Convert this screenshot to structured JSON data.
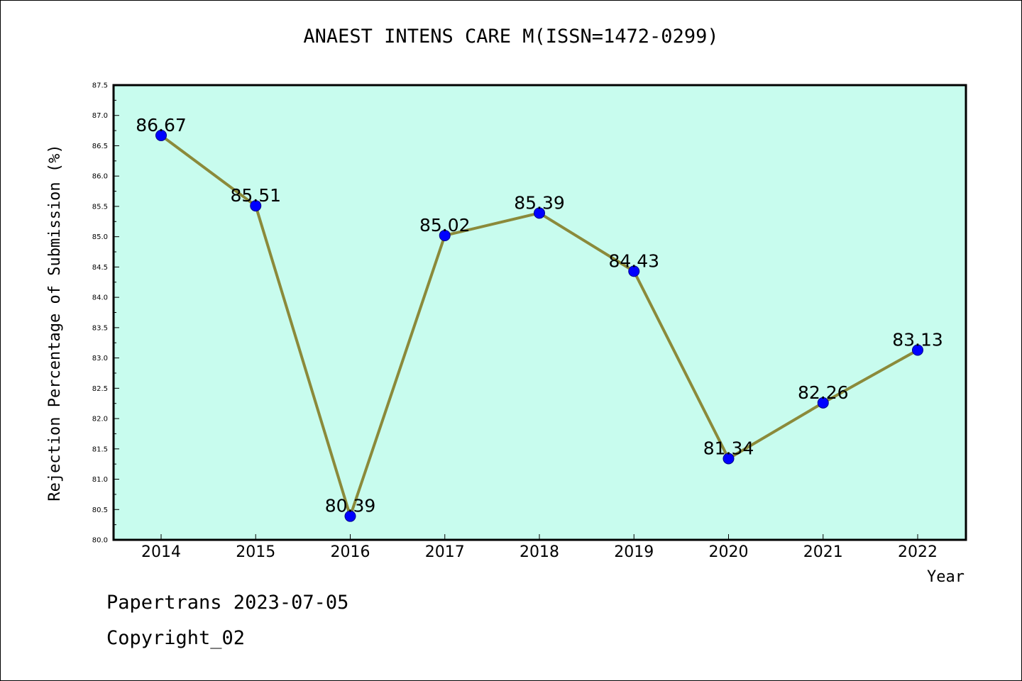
{
  "chart_data": {
    "type": "line",
    "title": "ANAEST INTENS CARE M(ISSN=1472-0299)",
    "xlabel": "Year",
    "ylabel": "Rejection Percentage of Submission (%)",
    "categories": [
      "2014",
      "2015",
      "2016",
      "2017",
      "2018",
      "2019",
      "2020",
      "2021",
      "2022"
    ],
    "series": [
      {
        "values": [
          86.67,
          85.51,
          80.39,
          85.02,
          85.39,
          84.43,
          81.34,
          82.26,
          83.13
        ],
        "labels": [
          "86.67",
          "85.51",
          "80.39",
          "85.02",
          "85.39",
          "84.43",
          "81.34",
          "82.26",
          "83.13"
        ]
      }
    ],
    "ylim": [
      80.0,
      87.5
    ],
    "yticks": [
      "80.0",
      "80.5",
      "81.0",
      "81.5",
      "82.0",
      "82.5",
      "83.0",
      "83.5",
      "84.0",
      "84.5",
      "85.0",
      "85.5",
      "86.0",
      "86.5",
      "87.0",
      "87.5"
    ],
    "grid": false,
    "colors": {
      "plot_background": "#c8fcee",
      "line": "#8b8a3a",
      "marker": "#0000ff"
    }
  },
  "footer": {
    "line1": "Papertrans 2023-07-05",
    "line2": "Copyright_02"
  }
}
